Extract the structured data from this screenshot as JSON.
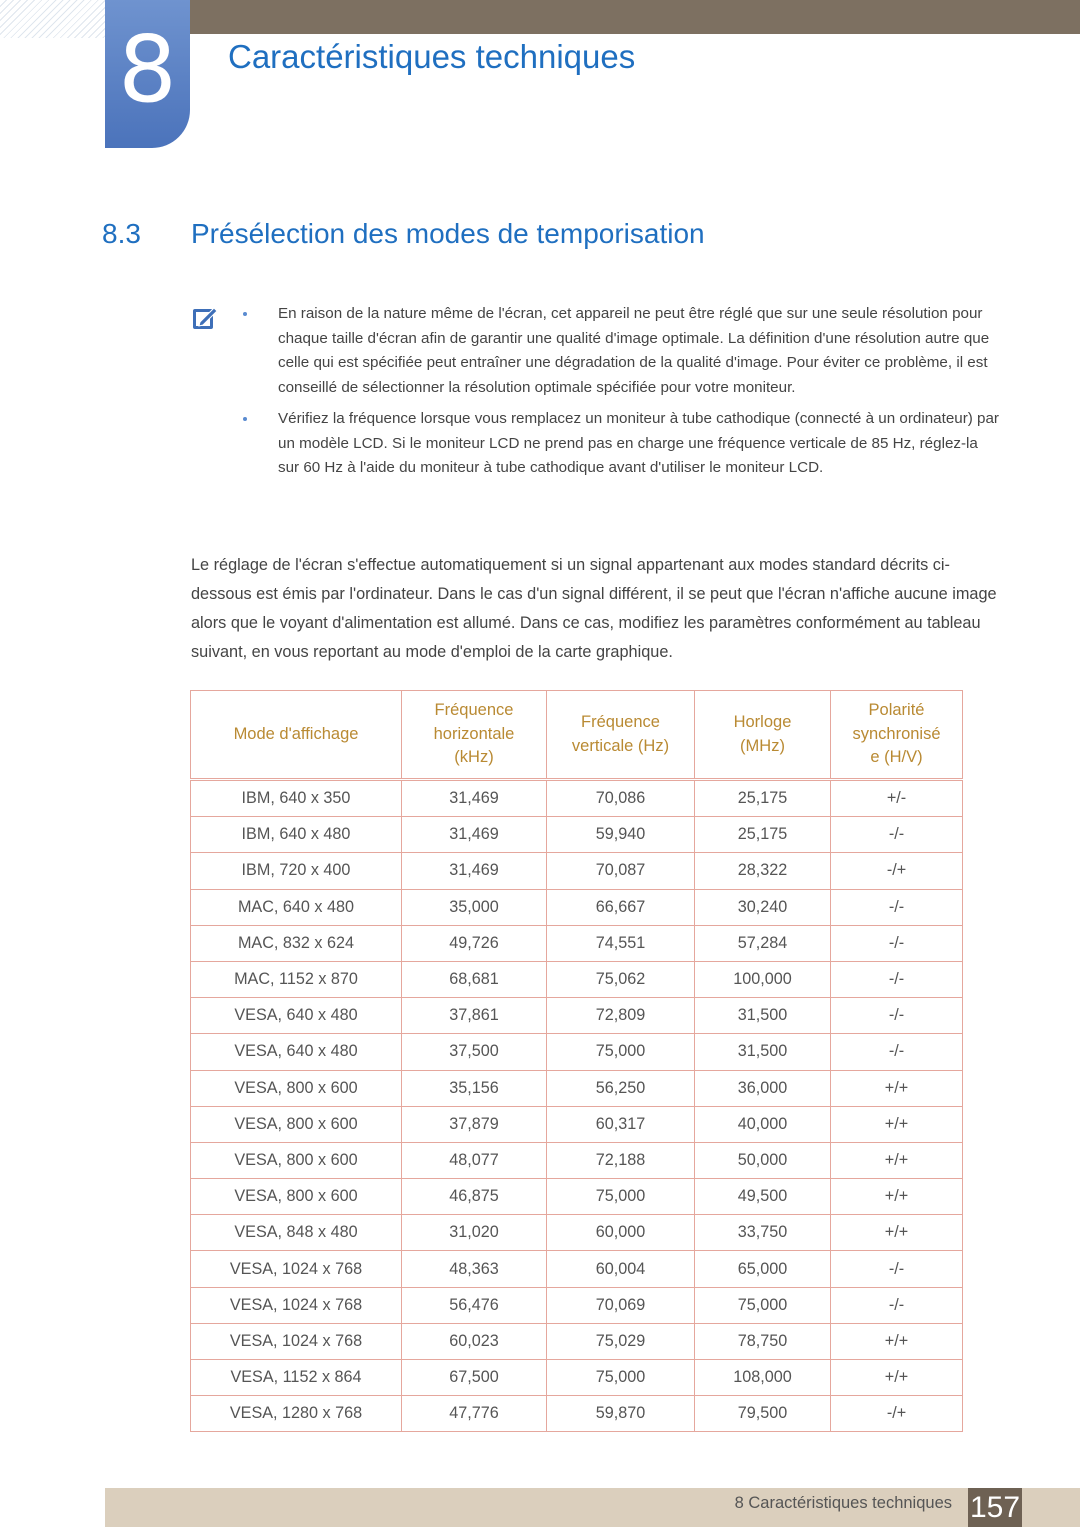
{
  "header": {
    "chapter_number": "8",
    "chapter_title": "Caractéristiques techniques"
  },
  "section": {
    "number": "8.3",
    "title": "Présélection des modes de temporisation"
  },
  "notes": [
    "En raison de la nature même de l'écran, cet appareil ne peut être réglé que sur une seule résolution pour chaque taille d'écran afin de garantir une qualité d'image optimale. La définition d'une résolution autre que celle qui est spécifiée peut entraîner une dégradation de la qualité d'image. Pour éviter ce problème, il est conseillé de sélectionner la résolution optimale spécifiée pour votre moniteur.",
    "Vérifiez la fréquence lorsque vous remplacez un moniteur à tube cathodique (connecté à un ordinateur) par un modèle LCD. Si le moniteur LCD ne prend pas en charge une fréquence verticale de 85 Hz, réglez-la sur 60 Hz à l'aide du moniteur à tube cathodique avant d'utiliser le moniteur LCD."
  ],
  "paragraph": "Le réglage de l'écran s'effectue automatiquement si un signal appartenant aux modes standard décrits ci-dessous est émis par l'ordinateur. Dans le cas d'un signal différent, il se peut que l'écran n'affiche aucune image alors que le voyant d'alimentation est allumé. Dans ce cas, modifiez les paramètres conformément au tableau suivant, en vous reportant au mode d'emploi de la carte graphique.",
  "table": {
    "header": [
      [
        "Mode d'affichage"
      ],
      [
        "Fréquence",
        "horizontale",
        "(kHz)"
      ],
      [
        "Fréquence",
        "verticale (Hz)"
      ],
      [
        "Horloge",
        "(MHz)"
      ],
      [
        "Polarité",
        "synchronisé",
        "e (H/V)"
      ]
    ],
    "rows": [
      [
        "IBM, 640 x 350",
        "31,469",
        "70,086",
        "25,175",
        "+/-"
      ],
      [
        "IBM, 640 x 480",
        "31,469",
        "59,940",
        "25,175",
        "-/-"
      ],
      [
        "IBM, 720 x 400",
        "31,469",
        "70,087",
        "28,322",
        "-/+"
      ],
      [
        "MAC, 640 x 480",
        "35,000",
        "66,667",
        "30,240",
        "-/-"
      ],
      [
        "MAC, 832 x 624",
        "49,726",
        "74,551",
        "57,284",
        "-/-"
      ],
      [
        "MAC, 1152 x 870",
        "68,681",
        "75,062",
        "100,000",
        "-/-"
      ],
      [
        "VESA, 640 x 480",
        "37,861",
        "72,809",
        "31,500",
        "-/-"
      ],
      [
        "VESA, 640 x 480",
        "37,500",
        "75,000",
        "31,500",
        "-/-"
      ],
      [
        "VESA, 800 x 600",
        "35,156",
        "56,250",
        "36,000",
        "+/+"
      ],
      [
        "VESA, 800 x 600",
        "37,879",
        "60,317",
        "40,000",
        "+/+"
      ],
      [
        "VESA, 800 x 600",
        "48,077",
        "72,188",
        "50,000",
        "+/+"
      ],
      [
        "VESA, 800 x 600",
        "46,875",
        "75,000",
        "49,500",
        "+/+"
      ],
      [
        "VESA, 848 x 480",
        "31,020",
        "60,000",
        "33,750",
        "+/+"
      ],
      [
        "VESA, 1024 x 768",
        "48,363",
        "60,004",
        "65,000",
        "-/-"
      ],
      [
        "VESA, 1024 x 768",
        "56,476",
        "70,069",
        "75,000",
        "-/-"
      ],
      [
        "VESA, 1024 x 768",
        "60,023",
        "75,029",
        "78,750",
        "+/+"
      ],
      [
        "VESA, 1152 x 864",
        "67,500",
        "75,000",
        "108,000",
        "+/+"
      ],
      [
        "VESA, 1280 x 768",
        "47,776",
        "59,870",
        "79,500",
        "-/+"
      ]
    ]
  },
  "footer": {
    "chapter": "8 Caractéristiques techniques",
    "page_number": "157"
  }
}
